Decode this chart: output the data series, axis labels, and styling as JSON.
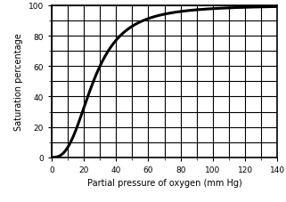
{
  "title": "",
  "xlabel": "Partial pressure of oxygen (mm Hg)",
  "ylabel": "Saturation percentage",
  "xlim": [
    0,
    140
  ],
  "ylim": [
    0,
    100
  ],
  "xticks": [
    0,
    20,
    40,
    60,
    80,
    100,
    120,
    140
  ],
  "yticks": [
    0,
    20,
    40,
    60,
    80,
    100
  ],
  "minor_xticks": [
    10,
    30,
    50,
    70,
    90,
    110,
    130
  ],
  "minor_yticks": [
    10,
    30,
    50,
    70,
    90
  ],
  "curve_color": "#000000",
  "curve_linewidth": 2.2,
  "grid_color": "#000000",
  "grid_linewidth": 0.8,
  "background_color": "#ffffff",
  "hill_n": 2.8,
  "hill_k": 26.0,
  "hill_max": 100.0,
  "xlabel_fontsize": 7.0,
  "ylabel_fontsize": 7.0,
  "tick_labelsize": 6.5
}
